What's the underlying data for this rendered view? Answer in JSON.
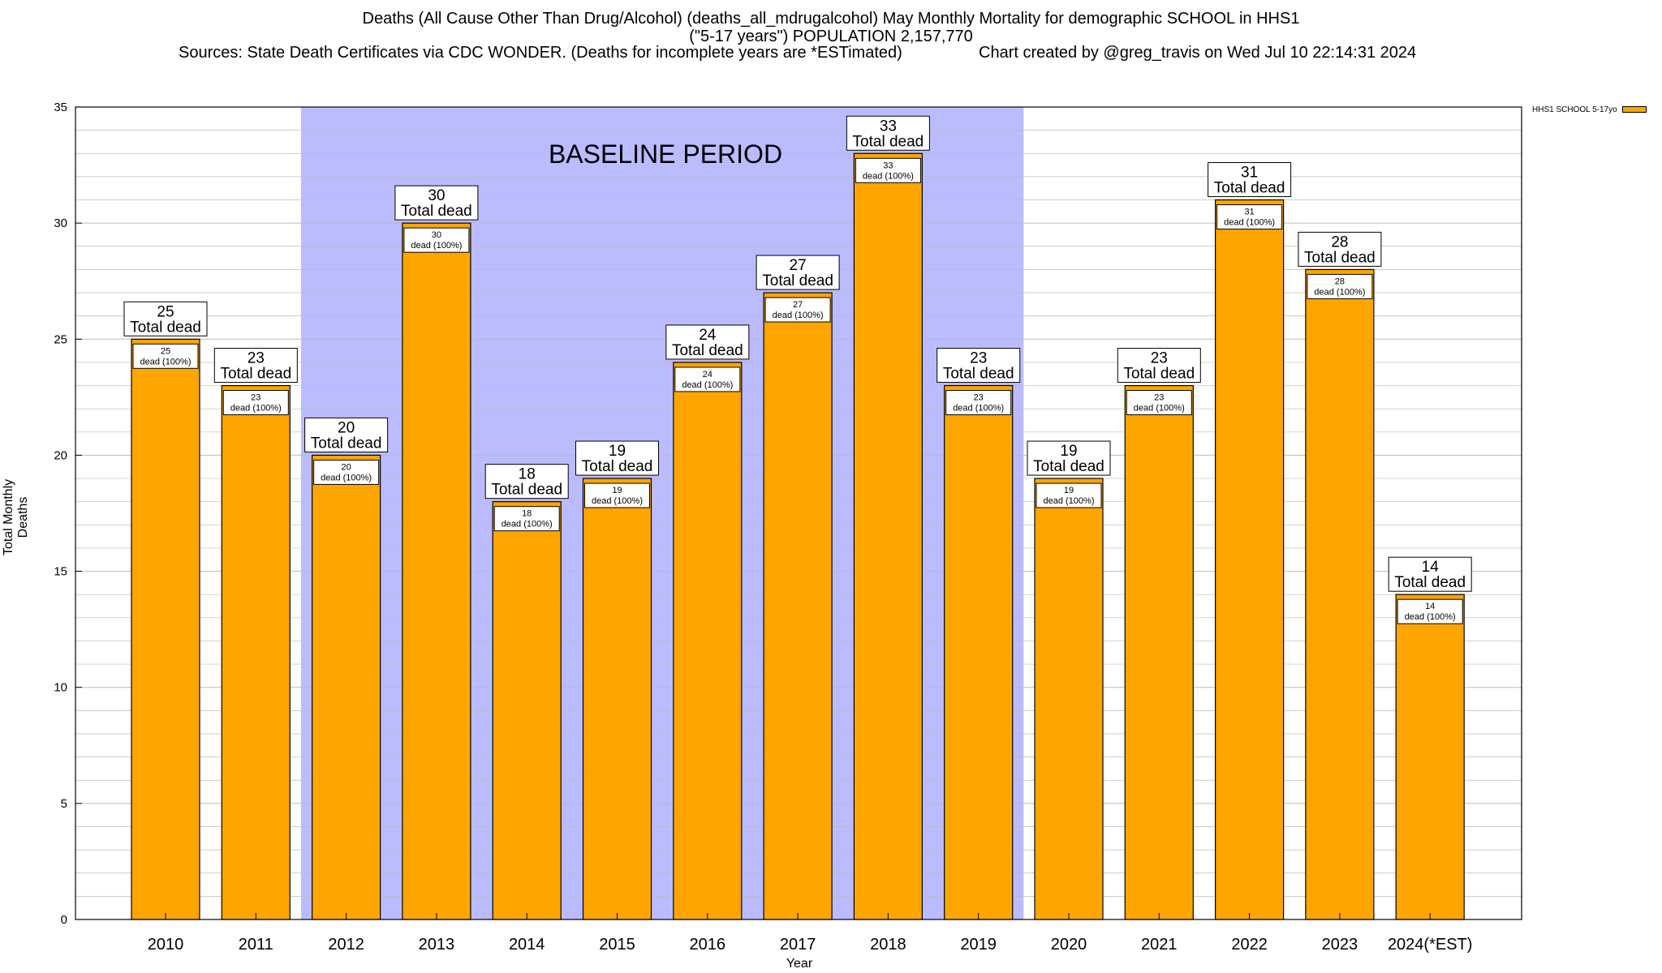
{
  "title_line1": "Deaths (All Cause Other Than Drug/Alcohol) (deaths_all_mdrugalcohol) May Monthly Mortality for demographic SCHOOL in HHS1",
  "title_line2": "(\"5-17 years\") POPULATION 2,157,770",
  "sources": "Sources: State Death Certificates via CDC WONDER. (Deaths for incomplete years are *ESTimated)",
  "credit": "Chart created by @greg_travis on Wed Jul 10 22:14:31 2024",
  "baseline_label": "BASELINE PERIOD",
  "colors": {
    "bar": "#FFA500",
    "baseline": "#BBBBFF",
    "grid": "#BBBBBB"
  },
  "chart_data": {
    "type": "bar",
    "title": "Deaths (All Cause Other Than Drug/Alcohol) (deaths_all_mdrugalcohol) May Monthly Mortality for demographic SCHOOL in HHS1",
    "xlabel": "Year",
    "ylabel": "Total Monthly Deaths",
    "ylim": [
      0,
      35
    ],
    "yticks": [
      0,
      5,
      10,
      15,
      20,
      25,
      30,
      35
    ],
    "categories": [
      "2010",
      "2011",
      "2012",
      "2013",
      "2014",
      "2015",
      "2016",
      "2017",
      "2018",
      "2019",
      "2020",
      "2021",
      "2022",
      "2023",
      "2024(*EST)"
    ],
    "series": [
      {
        "name": "HHS1 SCHOOL 5-17yo",
        "values": [
          25,
          23,
          20,
          30,
          18,
          19,
          24,
          27,
          33,
          23,
          19,
          23,
          31,
          28,
          14
        ]
      }
    ],
    "total_label": "Total dead",
    "inner_label": "dead (100%)",
    "baseline_range": [
      "2012",
      "2019"
    ],
    "grid": true,
    "legend": "top-right"
  }
}
